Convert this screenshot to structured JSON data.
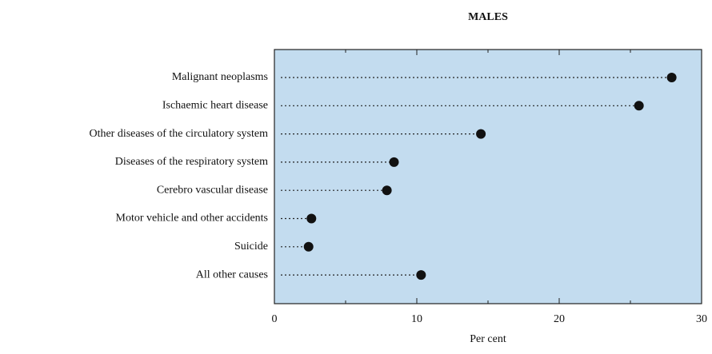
{
  "chart_data": {
    "type": "dot",
    "title": "MALES",
    "xlabel": "Per cent",
    "categories": [
      "Malignant neoplasms",
      "Ischaemic heart disease",
      "Other diseases of the circulatory system",
      "Diseases of the respiratory system",
      "Cerebro vascular disease",
      "Motor vehicle and other accidents",
      "Suicide",
      "All other causes"
    ],
    "values": [
      27.9,
      25.6,
      14.5,
      8.4,
      7.9,
      2.6,
      2.4,
      10.3
    ],
    "color": "#111111",
    "background": "#c3dcef",
    "xlim": [
      0,
      30
    ],
    "xticks": [
      0,
      10,
      20,
      30
    ],
    "minor_xticks": [
      5,
      15,
      25
    ]
  }
}
